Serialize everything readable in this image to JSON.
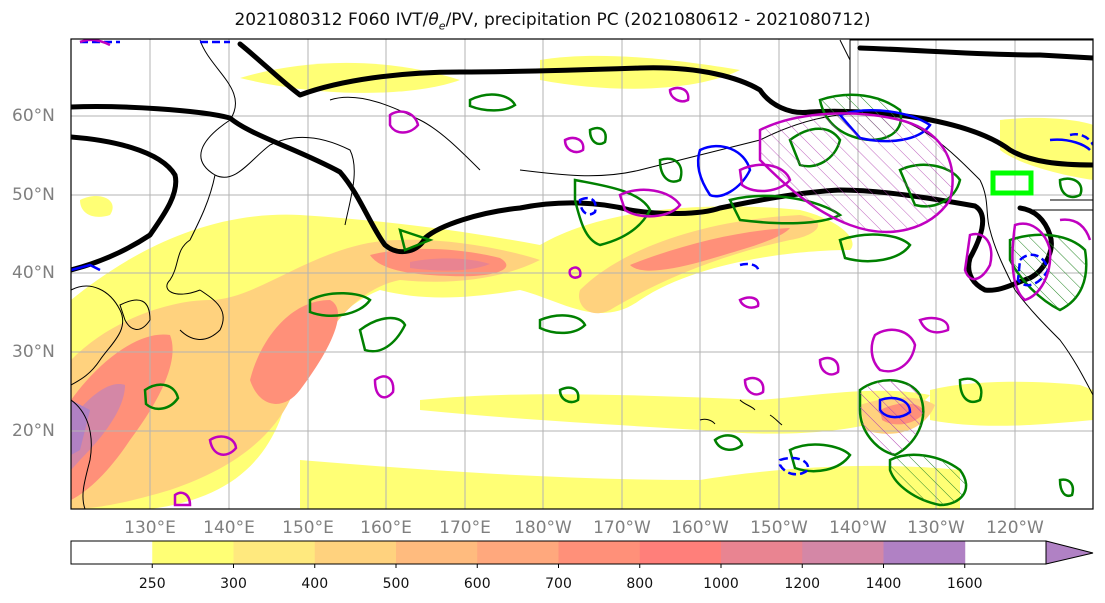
{
  "title": {
    "prefix": "2021080312 F060 IVT/",
    "theta": "θ",
    "theta_sub": "e",
    "suffix": "/PV, precipitation PC (2021080612 - 2021080712)"
  },
  "axes": {
    "lat_labels": [
      "60°N",
      "50°N",
      "40°N",
      "30°N",
      "20°N"
    ],
    "lon_labels": [
      "130°E",
      "140°E",
      "150°E",
      "160°E",
      "170°E",
      "180°W",
      "170°W",
      "160°W",
      "150°W",
      "140°W",
      "130°W",
      "120°W"
    ],
    "lat_range": [
      10,
      70
    ],
    "lon_range": [
      120,
      250
    ]
  },
  "colorbar": {
    "ticks": [
      "250",
      "300",
      "400",
      "500",
      "600",
      "700",
      "800",
      "1000",
      "1200",
      "1400",
      "1600"
    ],
    "colors": [
      "#ffffff",
      "#ffff75",
      "#ffe97e",
      "#ffd27e",
      "#ffbb7e",
      "#ffa87d",
      "#ff9079",
      "#ff7f7a",
      "#e98491",
      "#d487a6",
      "#b081c4"
    ],
    "extend": "max"
  },
  "colors": {
    "contour_black": "#000000",
    "contour_green": "#008000",
    "contour_blue": "#0000ff",
    "contour_magenta": "#c000c0",
    "box_lime": "#00ff00"
  }
}
